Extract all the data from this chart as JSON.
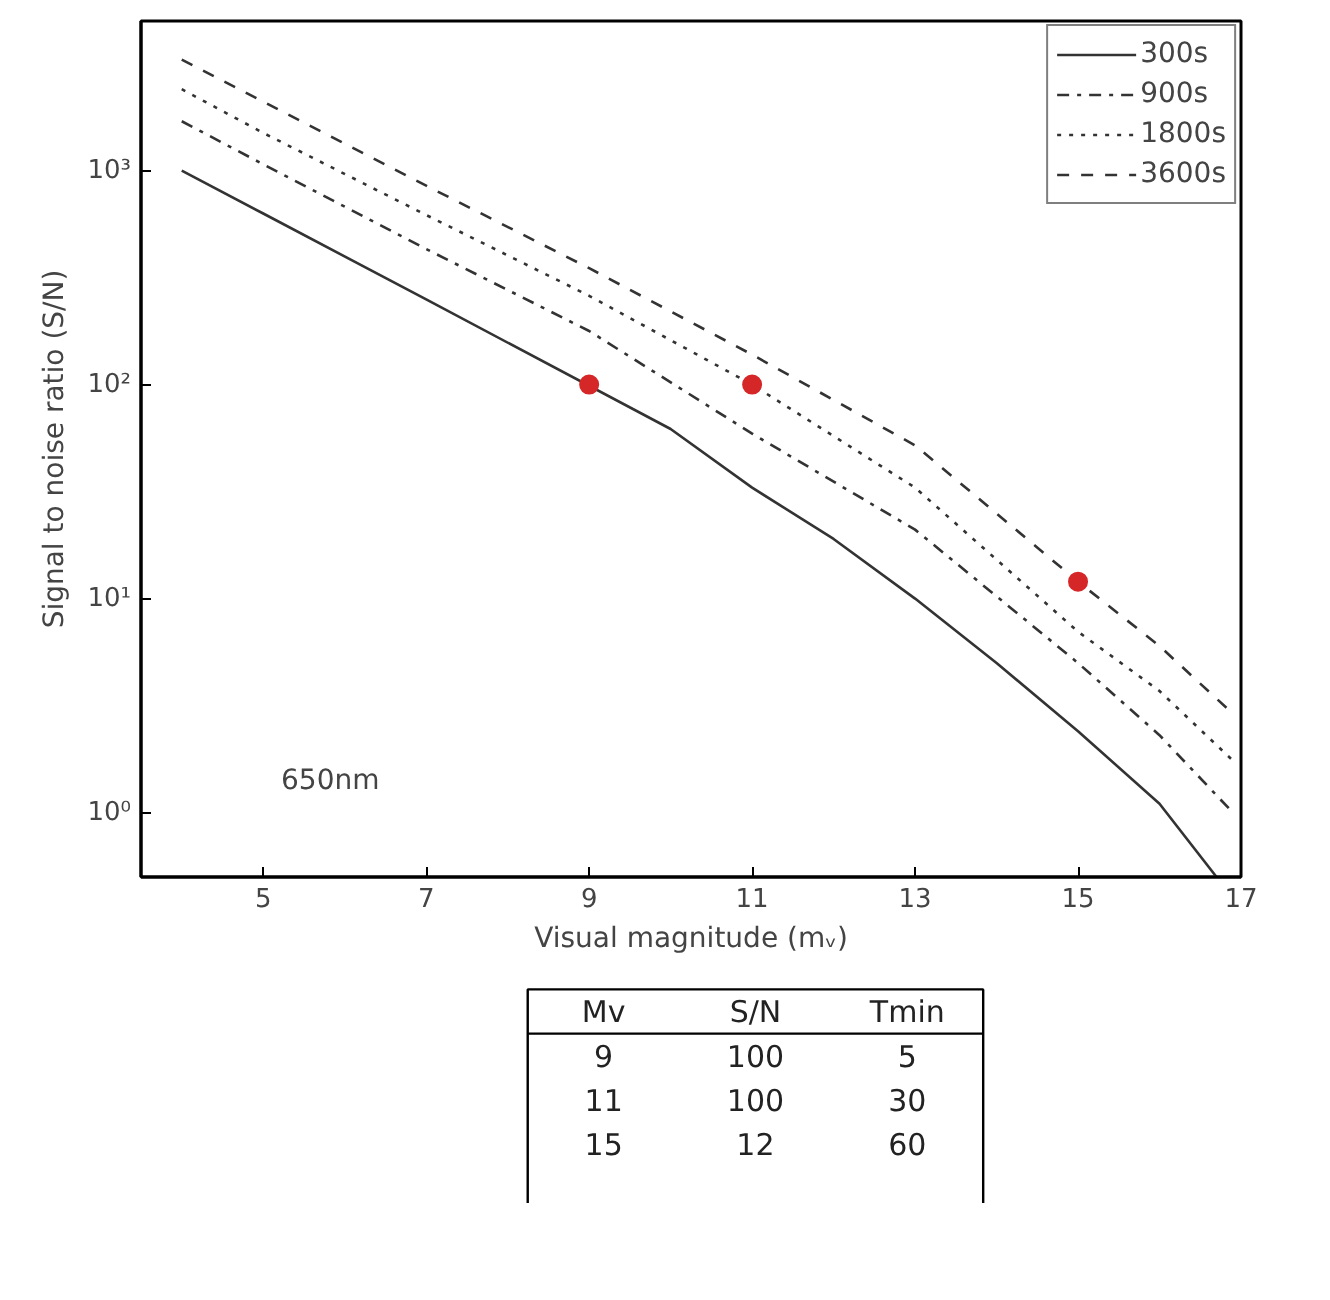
{
  "chart_data": {
    "type": "line",
    "xlabel": "Visual magnitude (mᵥ)",
    "ylabel": "Signal to noise ratio (S/N)",
    "xlim": [
      3.5,
      17
    ],
    "xticks": [
      5,
      7,
      9,
      11,
      13,
      15,
      17
    ],
    "ylim": [
      0.5,
      5000
    ],
    "yticks": [
      {
        "value": 1,
        "label": "10⁰"
      },
      {
        "value": 10,
        "label": "10¹"
      },
      {
        "value": 100,
        "label": "10²"
      },
      {
        "value": 1000,
        "label": "10³"
      }
    ],
    "log": "y",
    "grid": false,
    "legend": "top right",
    "marker": "none",
    "series": [
      {
        "name": "300s",
        "color": "#333333",
        "line_style": "solid",
        "x": [
          4,
          5,
          7,
          10,
          11,
          12,
          13,
          14,
          15,
          16,
          16.7
        ],
        "values": [
          1000,
          630,
          250,
          62,
          33,
          19,
          10,
          5,
          2.4,
          1.1,
          0.5
        ]
      },
      {
        "name": "900s",
        "color": "#333333",
        "line_style": "dashdot",
        "x": [
          4,
          5,
          7,
          9,
          11,
          13,
          15,
          16,
          16.9
        ],
        "values": [
          1700,
          1070,
          430,
          178,
          59,
          21,
          5,
          2.3,
          1.0
        ]
      },
      {
        "name": "1800s",
        "color": "#333333",
        "line_style": "dotted",
        "x": [
          4,
          5,
          7,
          9,
          11,
          13,
          15,
          16,
          16.9
        ],
        "values": [
          2400,
          1500,
          620,
          260,
          100,
          33,
          7,
          3.7,
          1.75
        ]
      },
      {
        "name": "3600s",
        "color": "#333333",
        "line_style": "dashed",
        "x": [
          4,
          5,
          7,
          9,
          11,
          13,
          15,
          16,
          16.9
        ],
        "values": [
          3300,
          2100,
          850,
          350,
          138,
          52,
          12,
          6,
          2.9
        ]
      },
      {
        "type": "scatter",
        "marker": "circle",
        "color": "#d62728",
        "x": [
          9,
          11,
          15
        ],
        "values": [
          100,
          100,
          12
        ]
      }
    ],
    "annotations": [
      "650nm",
      "Mv",
      "S/N",
      "Tmin",
      "9",
      "100",
      "5",
      "11",
      "100",
      "30",
      "15",
      "12",
      "60"
    ]
  }
}
